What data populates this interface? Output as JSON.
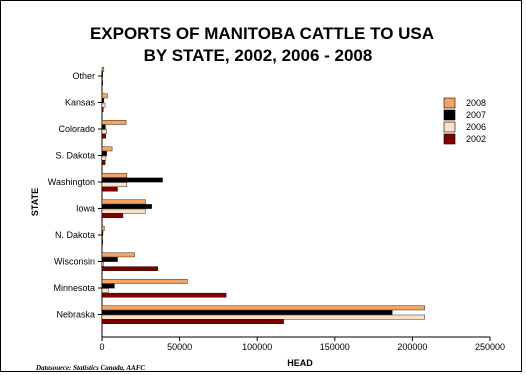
{
  "chart_data": {
    "type": "bar",
    "orientation": "horizontal",
    "title_line1": "EXPORTS OF MANITOBA CATTLE TO USA",
    "title_line2": "BY STATE, 2002, 2006 - 2008",
    "xlabel": "HEAD",
    "ylabel": "STATE",
    "xlim": [
      0,
      250000
    ],
    "x_ticks": [
      "0",
      "50000",
      "100000",
      "150000",
      "200000",
      "250000"
    ],
    "x_tick_values": [
      0,
      50000,
      100000,
      150000,
      200000,
      250000
    ],
    "categories": [
      "Other",
      "Kansas",
      "Colorado",
      "S. Dakota",
      "Washington",
      "Iowa",
      "N. Dakota",
      "Wisconsin",
      "Minnesota",
      "Nebraska"
    ],
    "series": [
      {
        "name": "2008",
        "color": "#f4a460",
        "values": [
          1200,
          3500,
          15500,
          6500,
          16000,
          28000,
          1500,
          21000,
          55000,
          208000
        ]
      },
      {
        "name": "2007",
        "color": "#000000",
        "values": [
          400,
          1200,
          2200,
          3000,
          39000,
          32000,
          600,
          10000,
          8000,
          187000
        ]
      },
      {
        "name": "2006",
        "color": "#fde0c8",
        "values": [
          300,
          2000,
          3000,
          2500,
          16000,
          28000,
          500,
          1000,
          4000,
          208000
        ]
      },
      {
        "name": "2002",
        "color": "#800000",
        "values": [
          100,
          800,
          2500,
          2000,
          10000,
          13500,
          200,
          36000,
          80000,
          117000
        ]
      }
    ],
    "legend_position": "right",
    "grid": false
  },
  "source_note": "Datasource: Statistics Canada, AAFC"
}
